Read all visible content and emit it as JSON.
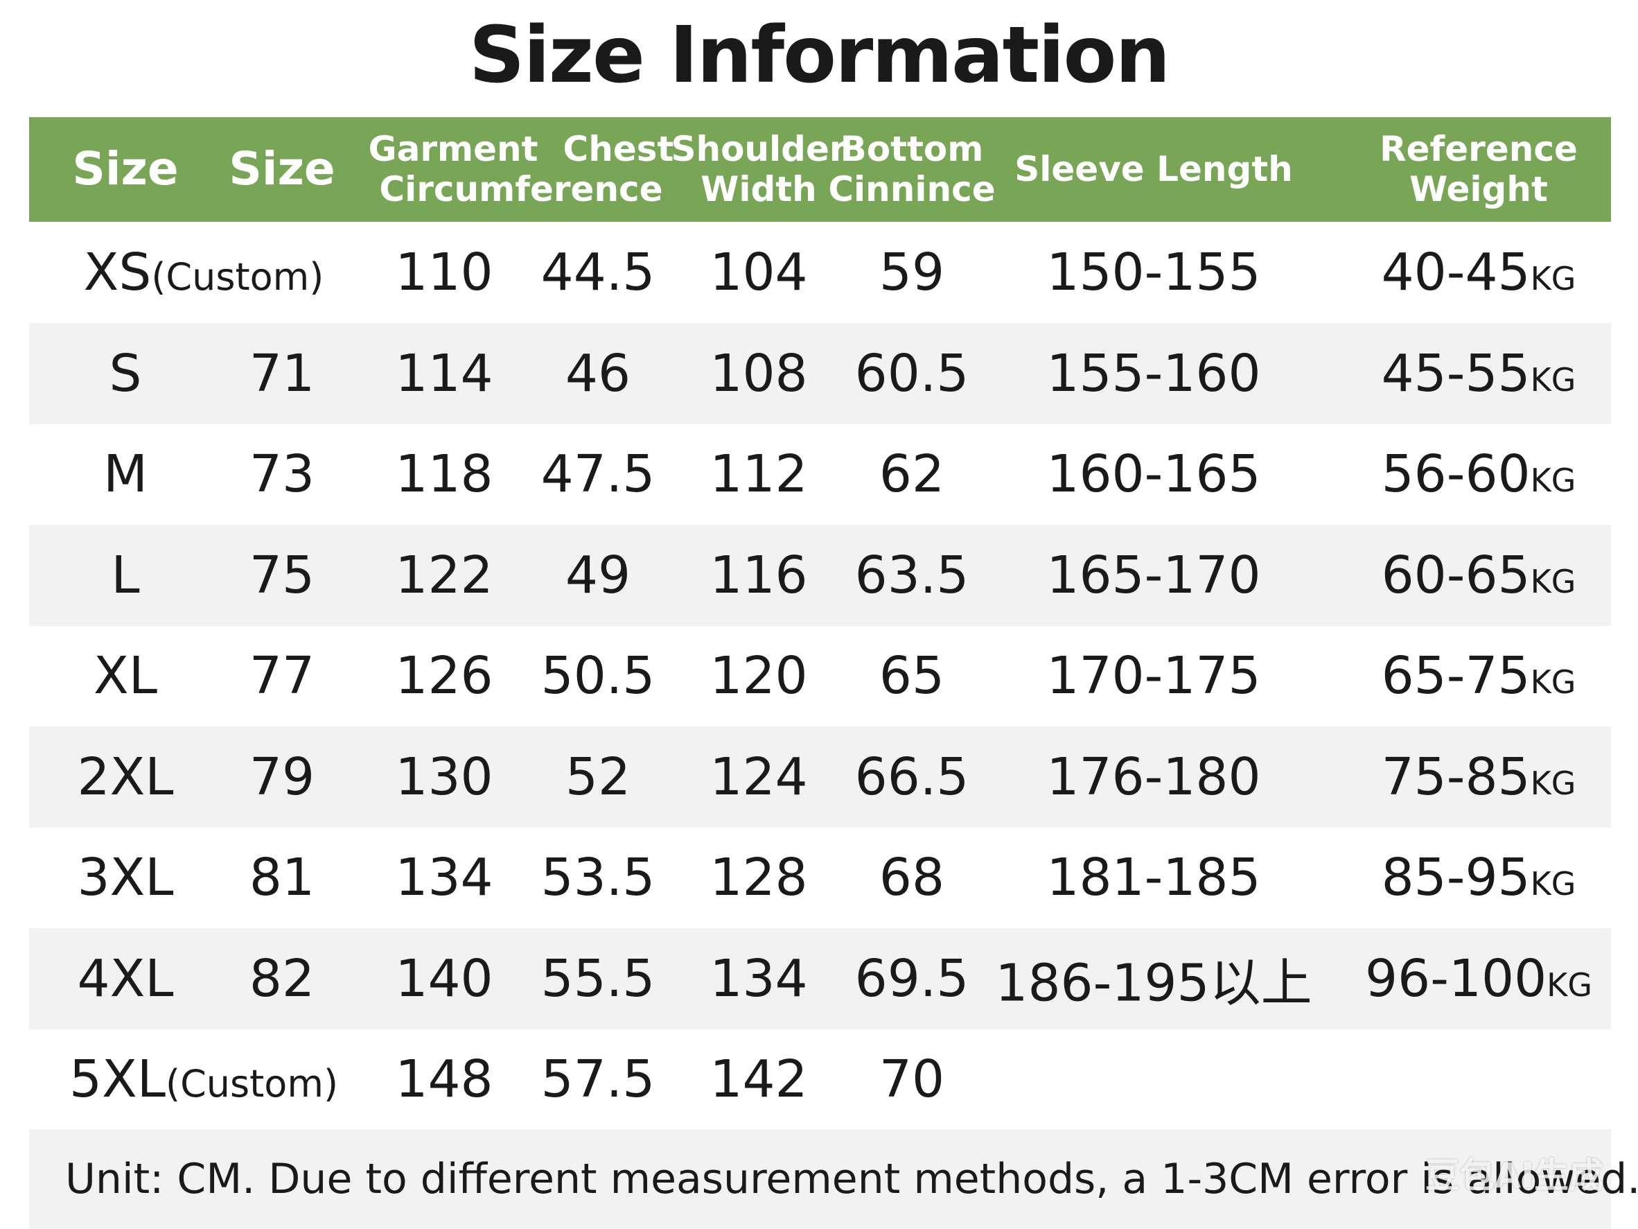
{
  "header": {
    "title": "Size Information"
  },
  "table": {
    "columns": [
      {
        "lines": [
          "Size"
        ]
      },
      {
        "lines": [
          "Size"
        ]
      },
      {
        "lines": [
          "Garment",
          "Chest",
          "Circumference"
        ]
      },
      {
        "lines": [
          "Shoulder",
          "Width"
        ]
      },
      {
        "lines": [
          "Bottom",
          "Cinnince"
        ]
      },
      {
        "lines": [
          "Sleeve Length"
        ]
      },
      {
        "lines": [
          "Reference",
          "Weight"
        ]
      }
    ],
    "rows": [
      {
        "size": {
          "main": "XS",
          "note": "(Custom)"
        },
        "cells": [
          "110",
          "44.5",
          "104",
          "59",
          "150-155"
        ],
        "weight": {
          "value": "40-45",
          "unit": "KG"
        }
      },
      {
        "size": {
          "main": "S"
        },
        "code": "71",
        "cells": [
          "114",
          "46",
          "108",
          "60.5",
          "155-160"
        ],
        "weight": {
          "value": "45-55",
          "unit": "KG"
        }
      },
      {
        "size": {
          "main": "M"
        },
        "code": "73",
        "cells": [
          "118",
          "47.5",
          "112",
          "62",
          "160-165"
        ],
        "weight": {
          "value": "56-60",
          "unit": "KG"
        }
      },
      {
        "size": {
          "main": "L"
        },
        "code": "75",
        "cells": [
          "122",
          "49",
          "116",
          "63.5",
          "165-170"
        ],
        "weight": {
          "value": "60-65",
          "unit": "KG"
        }
      },
      {
        "size": {
          "main": "XL"
        },
        "code": "77",
        "cells": [
          "126",
          "50.5",
          "120",
          "65",
          "170-175"
        ],
        "weight": {
          "value": "65-75",
          "unit": "KG"
        }
      },
      {
        "size": {
          "main": "2XL"
        },
        "code": "79",
        "cells": [
          "130",
          "52",
          "124",
          "66.5",
          "176-180"
        ],
        "weight": {
          "value": "75-85",
          "unit": "KG"
        }
      },
      {
        "size": {
          "main": "3XL"
        },
        "code": "81",
        "cells": [
          "134",
          "53.5",
          "128",
          "68",
          "181-185"
        ],
        "weight": {
          "value": "85-95",
          "unit": "KG"
        }
      },
      {
        "size": {
          "main": "4XL"
        },
        "code": "82",
        "cells": [
          "140",
          "55.5",
          "134",
          "69.5",
          "186-195以上"
        ],
        "weight": {
          "value": "96-100",
          "unit": "KG"
        }
      },
      {
        "size": {
          "main": "5XL",
          "note": "(Custom)"
        },
        "cells": [
          "148",
          "57.5",
          "142",
          "70"
        ]
      }
    ],
    "note": "Unit: CM. Due to different measurement methods, a 1-3CM error is allowed."
  },
  "watermark": "豆包AI生成"
}
